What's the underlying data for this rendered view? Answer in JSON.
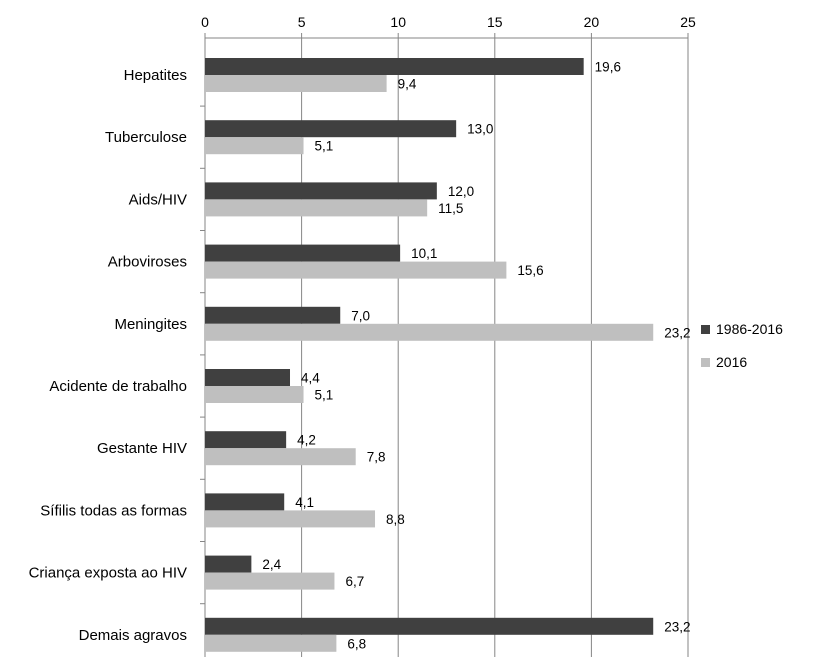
{
  "chart_data": {
    "type": "bar",
    "orientation": "horizontal",
    "categories": [
      "Hepatites",
      "Tuberculose",
      "Aids/HIV",
      "Arboviroses",
      "Meningites",
      "Acidente de trabalho",
      "Gestante HIV",
      "Sífilis todas as formas",
      "Criança exposta ao HIV",
      "Demais agravos"
    ],
    "series": [
      {
        "name": "1986-2016",
        "color": "#404040",
        "values": [
          19.6,
          13.0,
          12.0,
          10.1,
          7.0,
          4.4,
          4.2,
          4.1,
          2.4,
          23.2
        ],
        "labels": [
          "19,6",
          "13,0",
          "12,0",
          "10,1",
          "7,0",
          "4,4",
          "4,2",
          "4,1",
          "2,4",
          "23,2"
        ]
      },
      {
        "name": "2016",
        "color": "#bfbfbf",
        "values": [
          9.4,
          5.1,
          11.5,
          15.6,
          23.2,
          5.1,
          7.8,
          8.8,
          6.7,
          6.8
        ],
        "labels": [
          "9,4",
          "5,1",
          "11,5",
          "15,6",
          "23,2",
          "5,1",
          "7,8",
          "8,8",
          "6,7",
          "6,8"
        ]
      }
    ],
    "xlim": [
      0,
      25
    ],
    "xticks": [
      0,
      5,
      10,
      15,
      20,
      25
    ],
    "xtick_labels": [
      "0",
      "5",
      "10",
      "15",
      "20",
      "25"
    ],
    "x_axis_position": "top",
    "grid": "vertical",
    "gridline_color": "#868686",
    "legend_position": "right",
    "title": "",
    "xlabel": "",
    "ylabel": ""
  }
}
